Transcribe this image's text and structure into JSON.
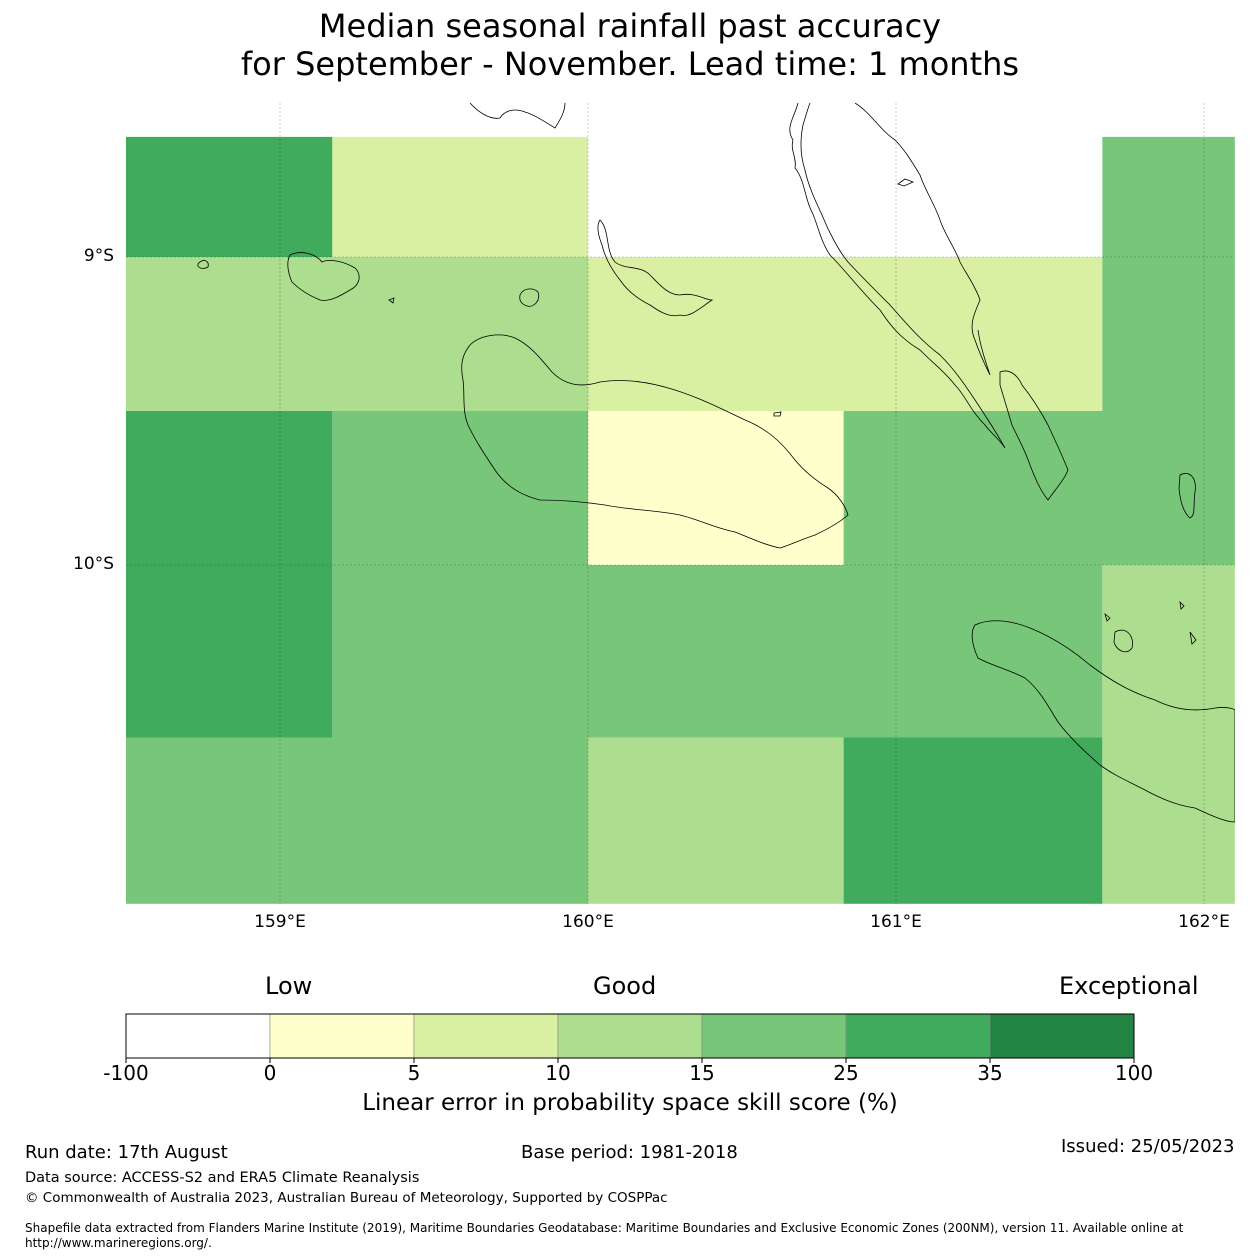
{
  "title": {
    "line1": "Median seasonal rainfall past accuracy",
    "line2": "for September - November. Lead time: 1 months"
  },
  "map": {
    "lat_labels": [
      "9°S",
      "10°S"
    ],
    "lon_labels": [
      "159°E",
      "160°E",
      "161°E",
      "162°E"
    ],
    "cells": [
      {
        "lon": [
          158.5,
          159.17
        ],
        "lat": [
          -8.61,
          -9.0
        ],
        "bin": 5
      },
      {
        "lon": [
          159.17,
          160.0
        ],
        "lat": [
          -8.61,
          -9.0
        ],
        "bin": 2
      },
      {
        "lon": [
          160.0,
          161.67
        ],
        "lat": [
          -8.61,
          -9.0
        ],
        "bin": 0
      },
      {
        "lon": [
          161.67,
          162.1
        ],
        "lat": [
          -8.61,
          -9.0
        ],
        "bin": 4
      },
      {
        "lon": [
          158.5,
          160.0
        ],
        "lat": [
          -9.0,
          -9.5
        ],
        "bin": 3
      },
      {
        "lon": [
          160.0,
          161.67
        ],
        "lat": [
          -9.0,
          -9.5
        ],
        "bin": 2
      },
      {
        "lon": [
          161.67,
          162.1
        ],
        "lat": [
          -9.0,
          -9.5
        ],
        "bin": 4
      },
      {
        "lon": [
          158.5,
          159.17
        ],
        "lat": [
          -9.5,
          -10.0
        ],
        "bin": 5
      },
      {
        "lon": [
          159.17,
          160.0
        ],
        "lat": [
          -9.5,
          -10.0
        ],
        "bin": 4
      },
      {
        "lon": [
          160.0,
          160.83
        ],
        "lat": [
          -9.5,
          -10.0
        ],
        "bin": 1
      },
      {
        "lon": [
          160.83,
          162.1
        ],
        "lat": [
          -9.5,
          -10.0
        ],
        "bin": 4
      },
      {
        "lon": [
          158.5,
          159.17
        ],
        "lat": [
          -10.0,
          -10.56
        ],
        "bin": 5
      },
      {
        "lon": [
          159.17,
          161.67
        ],
        "lat": [
          -10.0,
          -10.56
        ],
        "bin": 4
      },
      {
        "lon": [
          161.67,
          162.1
        ],
        "lat": [
          -10.0,
          -10.56
        ],
        "bin": 3
      },
      {
        "lon": [
          158.5,
          160.0
        ],
        "lat": [
          -10.56,
          -11.1
        ],
        "bin": 4
      },
      {
        "lon": [
          160.0,
          160.83
        ],
        "lat": [
          -10.56,
          -11.1
        ],
        "bin": 3
      },
      {
        "lon": [
          160.83,
          161.67
        ],
        "lat": [
          -10.56,
          -11.1
        ],
        "bin": 5
      },
      {
        "lon": [
          161.67,
          162.1
        ],
        "lat": [
          -10.56,
          -11.1
        ],
        "bin": 3
      }
    ]
  },
  "legend": {
    "categories": [
      "Low",
      "Good",
      "Exceptional"
    ],
    "colors": [
      "#ffffff",
      "#ffffcc",
      "#d9f0a3",
      "#addd8e",
      "#78c679",
      "#41ab5d",
      "#238443"
    ],
    "ticks": [
      "-100",
      "0",
      "5",
      "10",
      "15",
      "25",
      "35",
      "100"
    ],
    "title": "Linear error in probability space skill score (%)"
  },
  "footer": {
    "run_date": "Run date: 17th August",
    "base_period": "Base period: 1981-2018",
    "issued": "Issued: 25/05/2023",
    "data_source": "Data source: ACCESS-S2 and ERA5 Climate Reanalysis",
    "copyright": "© Commonwealth of Australia 2023, Australian Bureau of Meteorology, Supported by COSPPac",
    "shapefile": "Shapefile data extracted from Flanders Marine Institute (2019), Maritime Boundaries Geodatabase: Maritime Boundaries and Exclusive Economic Zones (200NM), version 11. Available online at http://www.marineregions.org/."
  }
}
